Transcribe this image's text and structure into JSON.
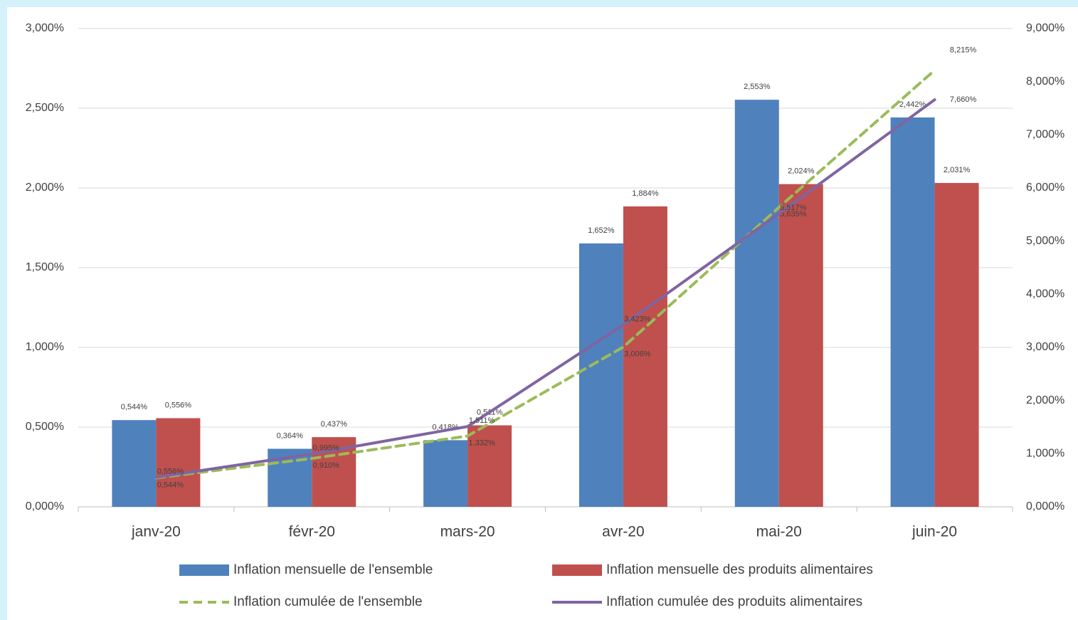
{
  "chart_data": {
    "type": "combo",
    "categories": [
      "janv-20",
      "févr-20",
      "mars-20",
      "avr-20",
      "mai-20",
      "juin-20"
    ],
    "ylim": [
      0,
      3
    ],
    "yticks": [
      {
        "value": 0,
        "label": "0,000%"
      },
      {
        "value": 0.5,
        "label": "0,500%"
      },
      {
        "value": 1,
        "label": "1,000%"
      },
      {
        "value": 1.5,
        "label": "1,500%"
      },
      {
        "value": 2,
        "label": "2,000%"
      },
      {
        "value": 2.5,
        "label": "2,500%"
      },
      {
        "value": 3,
        "label": "3,000%"
      }
    ],
    "y2lim": [
      0,
      9
    ],
    "y2ticks": [
      {
        "value": 0,
        "label": "0,000%"
      },
      {
        "value": 1,
        "label": "1,000%"
      },
      {
        "value": 2,
        "label": "2,000%"
      },
      {
        "value": 3,
        "label": "3,000%"
      },
      {
        "value": 4,
        "label": "4,000%"
      },
      {
        "value": 5,
        "label": "5,000%"
      },
      {
        "value": 6,
        "label": "6,000%"
      },
      {
        "value": 7,
        "label": "7,000%"
      },
      {
        "value": 8,
        "label": "8,000%"
      },
      {
        "value": 9,
        "label": "9,000%"
      }
    ],
    "grid": true,
    "legend": "bottom",
    "series": [
      {
        "name": "Inflation mensuelle de l'ensemble",
        "type": "bar",
        "color": "#4f81bd",
        "values": [
          0.544,
          0.364,
          0.418,
          1.652,
          2.553,
          2.442
        ],
        "value_labels": [
          "0,544%",
          "0,364%",
          "0,418%",
          "1,652%",
          "2,553%",
          "2,442%"
        ]
      },
      {
        "name": "Inflation mensuelle des produits alimentaires",
        "type": "bar",
        "color": "#c0504d",
        "values": [
          0.556,
          0.437,
          0.511,
          1.884,
          2.024,
          2.031
        ],
        "value_labels": [
          "0,556%",
          "0,437%",
          "0,511%",
          "1,884%",
          "2,024%",
          "2,031%"
        ]
      },
      {
        "name": "Inflation cumulée de l'ensemble",
        "type": "line",
        "axis": "y2",
        "color": "#9bbb59",
        "line_style": "dashed",
        "values": [
          0.544,
          0.91,
          1.332,
          3.006,
          5.635,
          8.215
        ],
        "value_labels": [
          "0,544%",
          "0,910%",
          "1,332%",
          "3,006%",
          "5,635%",
          "8,215%"
        ]
      },
      {
        "name": "Inflation cumulée des produits alimentaires",
        "type": "line",
        "axis": "y2",
        "color": "#8064a2",
        "line_style": "solid",
        "values": [
          0.556,
          0.995,
          1.511,
          3.423,
          5.517,
          7.66
        ],
        "value_labels": [
          "0,556%",
          "0,995%",
          "1,511%",
          "3,423%",
          "5,517%",
          "7,660%"
        ]
      }
    ]
  }
}
